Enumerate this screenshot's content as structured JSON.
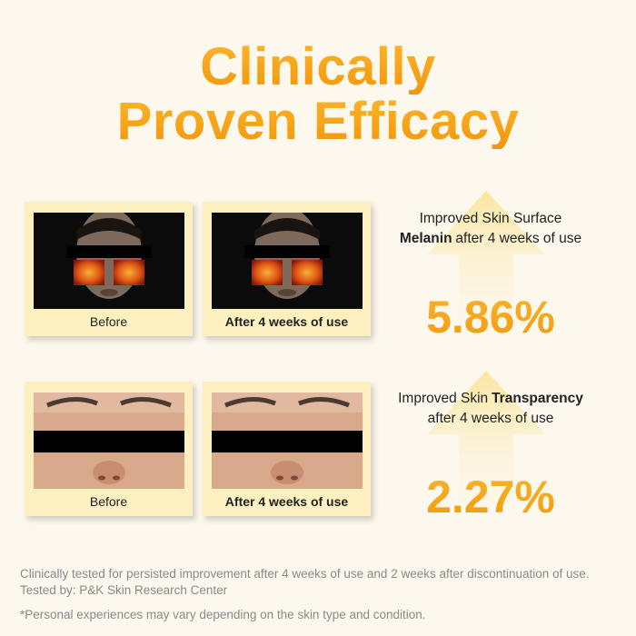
{
  "title": {
    "lines": [
      "Clinically",
      "Proven Efficacy"
    ]
  },
  "results": [
    {
      "image": "heatmap",
      "before_label": "Before",
      "after_label": "After 4 weeks of use",
      "description": [
        [
          {
            "text": "Improved Skin Surface"
          }
        ],
        [
          {
            "text": "Melanin",
            "bold": true
          },
          {
            "text": "after 4 weeks of use"
          }
        ]
      ],
      "stat": "5.86%"
    },
    {
      "image": "closeup",
      "before_label": "Before",
      "after_label": "After 4 weeks of use",
      "description": [
        [
          {
            "text": "Improved Skin"
          },
          {
            "text": "Transparency",
            "bold": true
          }
        ],
        [
          {
            "text": "after 4 weeks of use"
          }
        ]
      ],
      "stat": "2.27%"
    }
  ],
  "footer": {
    "notes": [
      "Clinically tested for persisted improvement after 4 weeks of use and 2 weeks after discontinuation of use.",
      "Tested by: P&K Skin Research Center"
    ],
    "disclaimer": "*Personal experiences may vary depending on the skin type and condition."
  }
}
